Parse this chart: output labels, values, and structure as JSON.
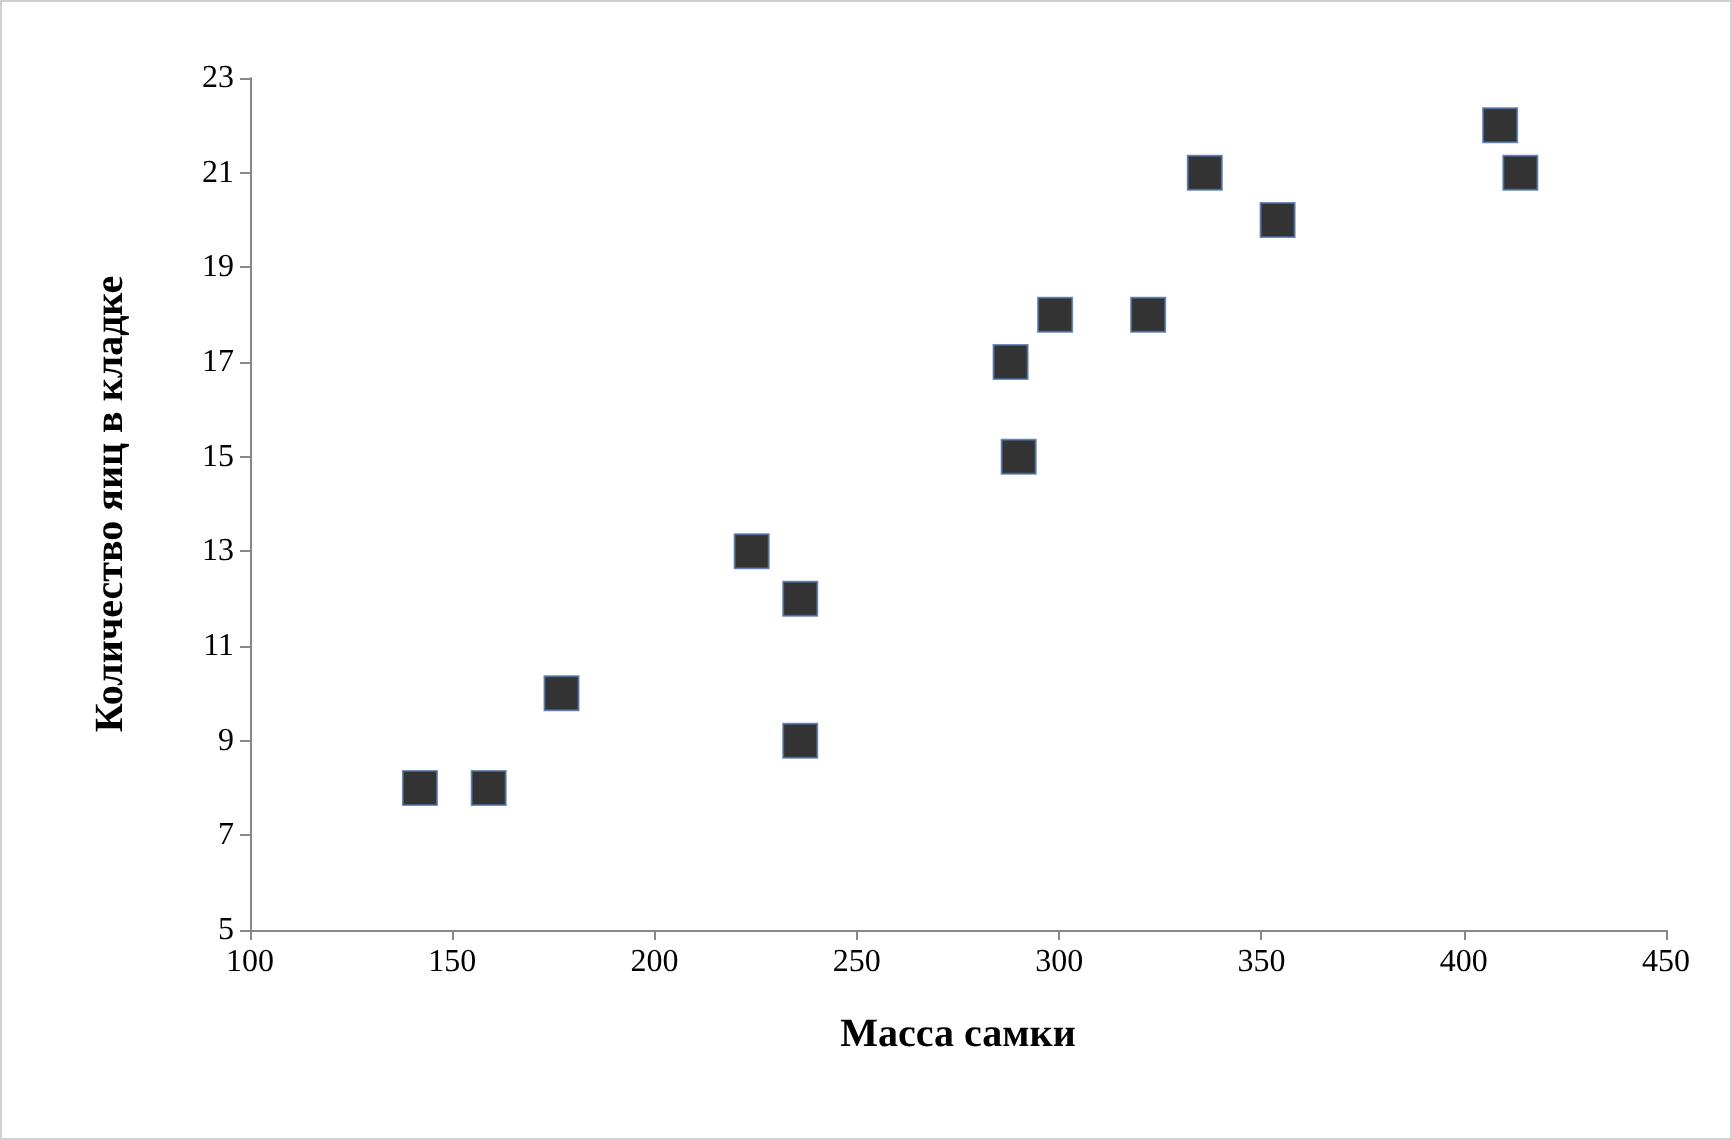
{
  "chart_data": {
    "type": "scatter",
    "xlabel": "Масса самки",
    "ylabel": "Количество яиц в кладке",
    "x": [
      142,
      159,
      177,
      224,
      236,
      236,
      288,
      290,
      299,
      322,
      336,
      354,
      409,
      414
    ],
    "values": [
      8,
      8,
      10,
      13,
      12,
      9,
      17,
      15,
      18,
      18,
      21,
      20,
      22,
      21
    ],
    "color": "#000000",
    "marker": "square",
    "xlim": [
      100,
      450
    ],
    "xticks": [
      100,
      150,
      200,
      250,
      300,
      350,
      400,
      450
    ],
    "ylim": [
      5,
      23
    ],
    "yticks": [
      5,
      7,
      9,
      11,
      13,
      15,
      17,
      19,
      21,
      23
    ],
    "grid": false
  }
}
